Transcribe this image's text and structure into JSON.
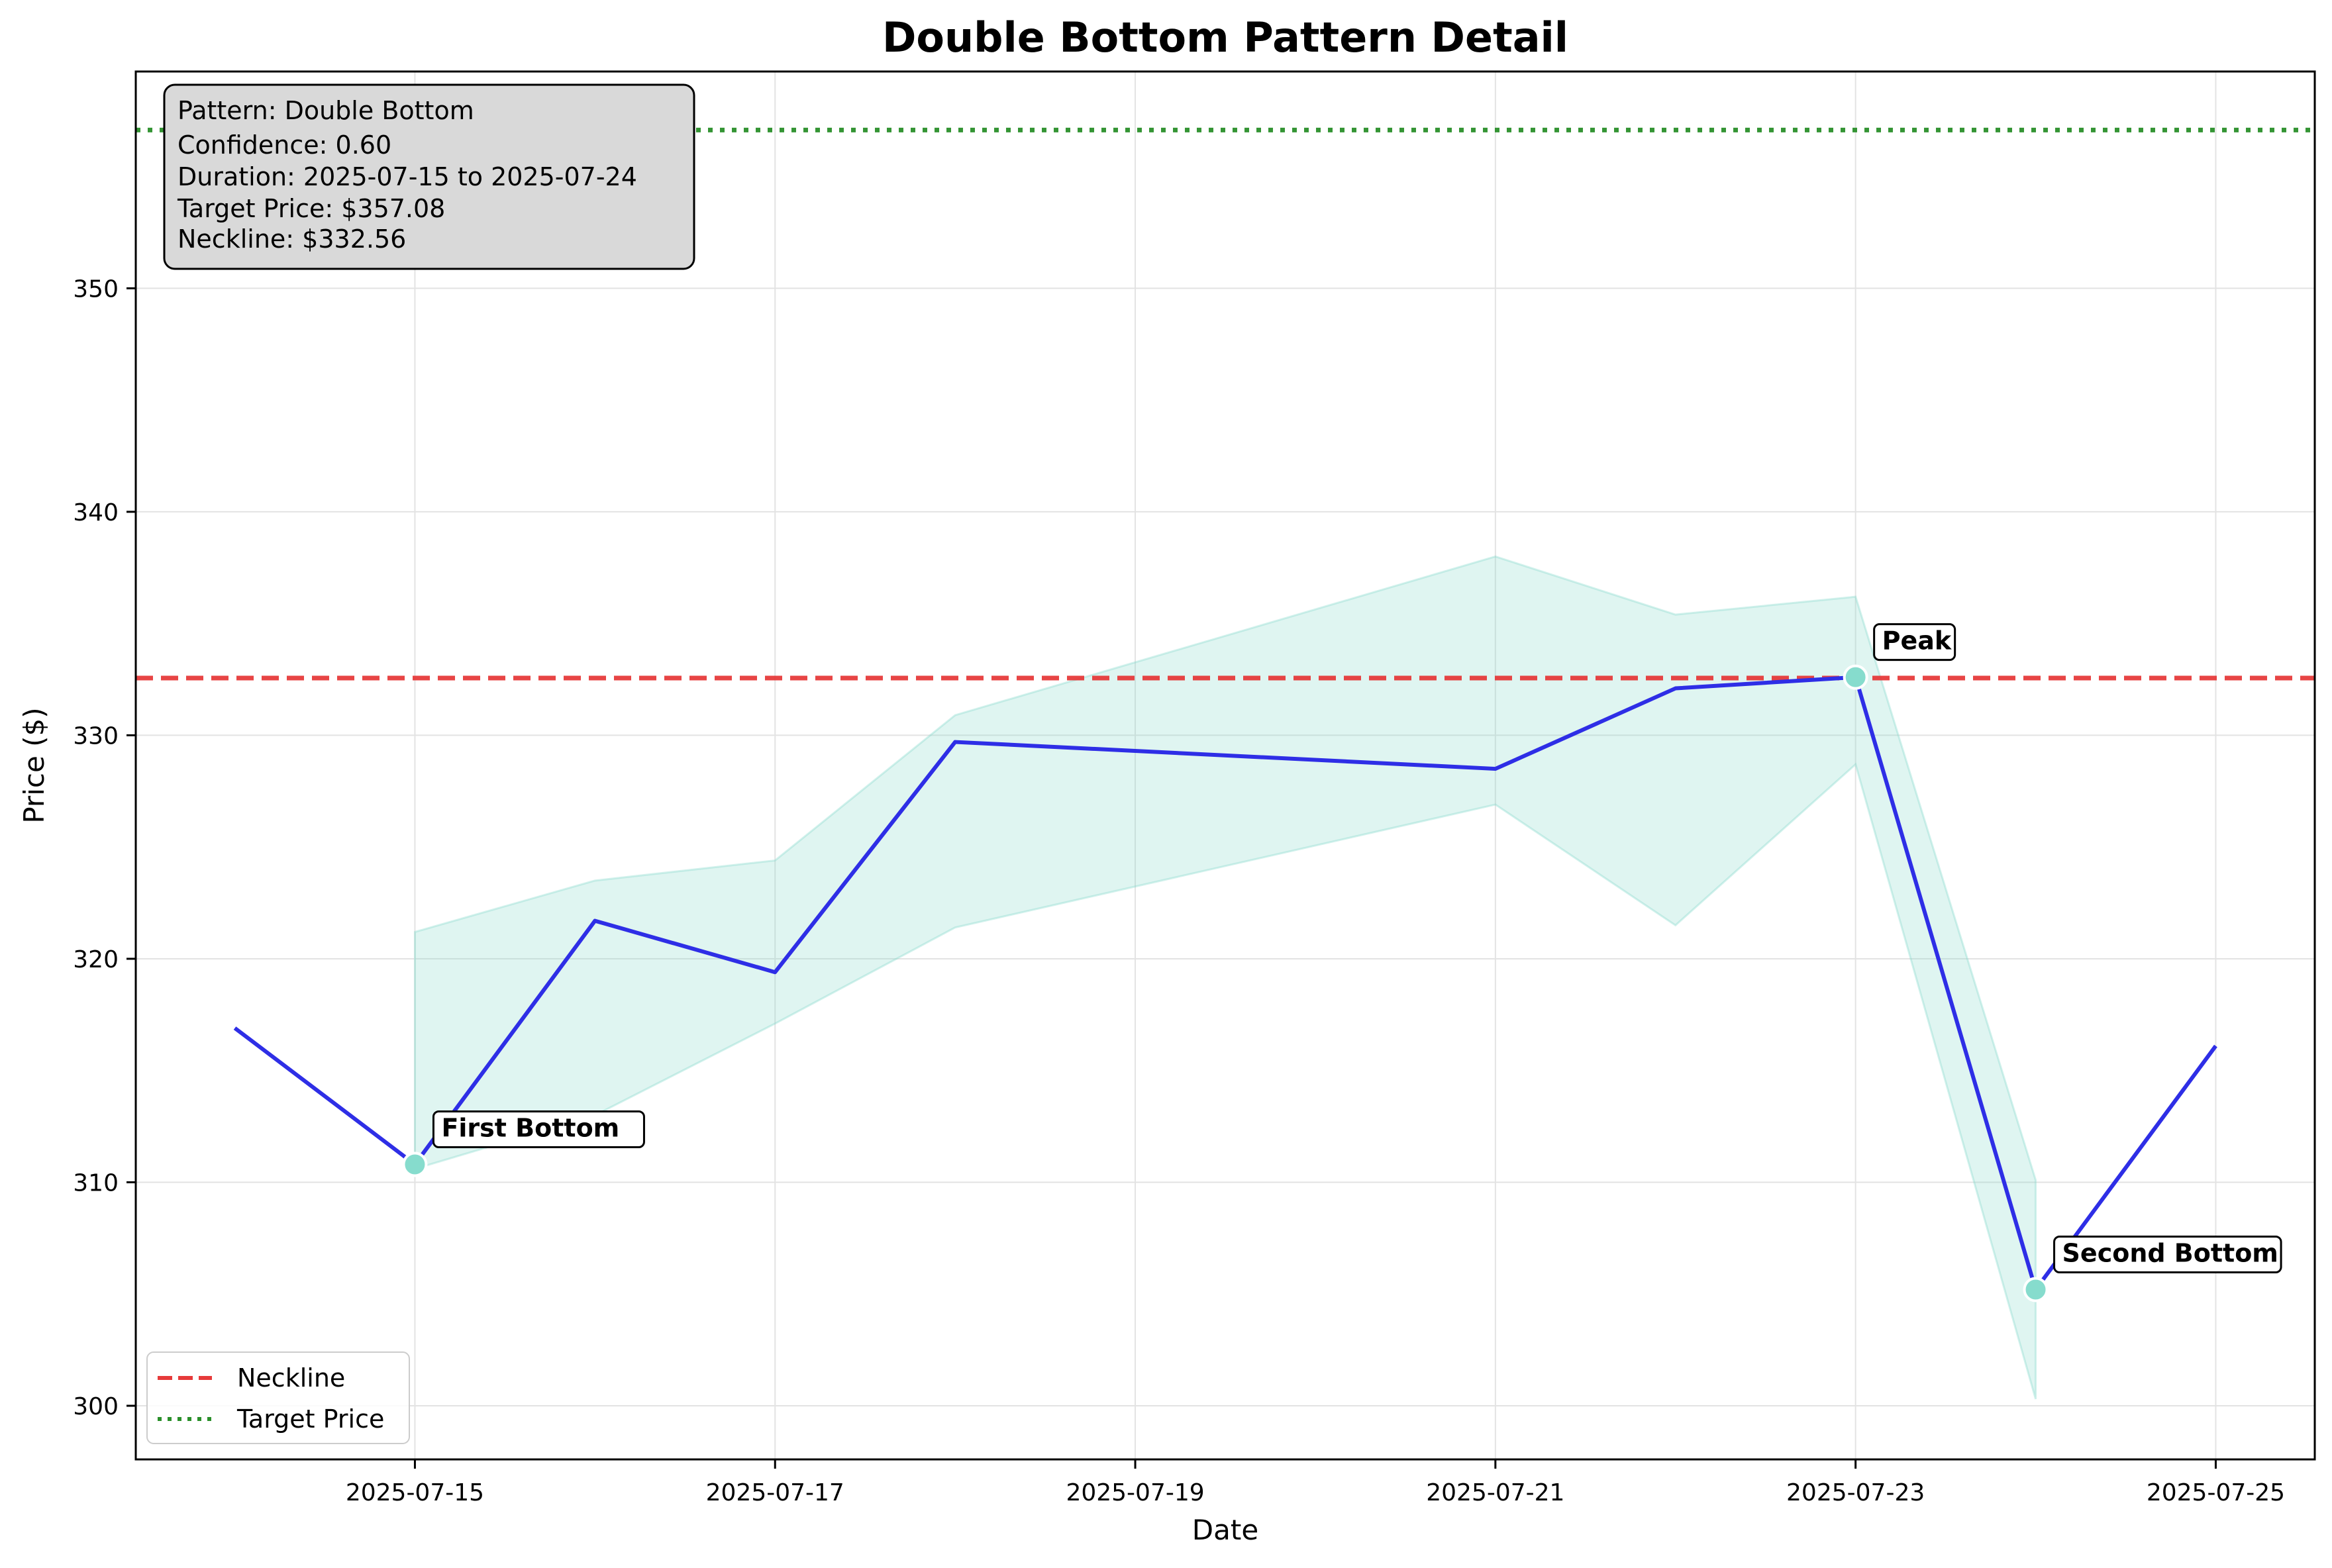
{
  "chart_data": {
    "type": "line",
    "title": "Double Bottom Pattern Detail",
    "xlabel": "Date",
    "ylabel": "Price ($)",
    "x": [
      "2025-07-14",
      "2025-07-15",
      "2025-07-16",
      "2025-07-17",
      "2025-07-18",
      "2025-07-21",
      "2025-07-22",
      "2025-07-23",
      "2025-07-24",
      "2025-07-25"
    ],
    "series": [
      {
        "name": "",
        "values": [
          316.9,
          310.8,
          321.7,
          319.4,
          329.7,
          328.5,
          332.1,
          332.6,
          305.2,
          316.1
        ],
        "color": "#2e2ee6"
      }
    ],
    "band": {
      "x": [
        "2025-07-15",
        "2025-07-16",
        "2025-07-17",
        "2025-07-18",
        "2025-07-21",
        "2025-07-22",
        "2025-07-23",
        "2025-07-24"
      ],
      "upper": [
        321.2,
        323.5,
        324.4,
        330.9,
        338.0,
        335.4,
        336.2,
        310.1
      ],
      "lower": [
        310.6,
        313.0,
        317.1,
        321.4,
        326.9,
        321.5,
        328.7,
        300.3
      ],
      "color": "#7fd8c8"
    },
    "reference_lines": [
      {
        "name": "Neckline",
        "value": 332.56,
        "style": "dashed",
        "color": "#e63a3a"
      },
      {
        "name": "Target Price",
        "value": 357.08,
        "style": "dotted",
        "color": "#2a8f2a"
      }
    ],
    "markers": [
      {
        "label": "First Bottom",
        "x": "2025-07-15",
        "y": 310.8
      },
      {
        "label": "Peak",
        "x": "2025-07-23",
        "y": 332.6
      },
      {
        "label": "Second Bottom",
        "x": "2025-07-24",
        "y": 305.2
      }
    ],
    "xlim": [
      "2025-07-13.45",
      "2025-07-25.55"
    ],
    "ylim": [
      297.6,
      359.7
    ],
    "x_ticks": [
      "2025-07-15",
      "2025-07-17",
      "2025-07-19",
      "2025-07-21",
      "2025-07-23",
      "2025-07-25"
    ],
    "y_ticks": [
      300,
      310,
      320,
      330,
      340,
      350
    ],
    "grid": true,
    "legend_position": "lower-left"
  },
  "info_box": {
    "lines": [
      "Pattern: Double Bottom",
      "Confidence: 0.60",
      "Duration: 2025-07-15 to 2025-07-24",
      "Target Price: $357.08",
      "Neckline: $332.56"
    ]
  },
  "legend": {
    "items": [
      {
        "label": "Neckline",
        "color": "#e63a3a",
        "style": "dashed"
      },
      {
        "label": "Target Price",
        "color": "#2a8f2a",
        "style": "dotted"
      }
    ]
  }
}
